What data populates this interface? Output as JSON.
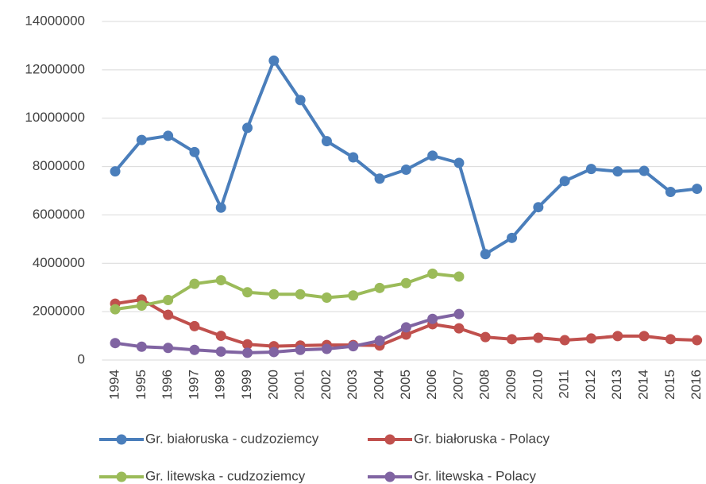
{
  "chart_data": {
    "type": "line",
    "categories": [
      "1994",
      "1995",
      "1996",
      "1997",
      "1998",
      "1999",
      "2000",
      "2001",
      "2002",
      "2003",
      "2004",
      "2005",
      "2006",
      "2007",
      "2008",
      "2009",
      "2010",
      "2011",
      "2012",
      "2013",
      "2014",
      "2015",
      "2016"
    ],
    "series": [
      {
        "name": "Gr. białoruska - cudzoziemcy",
        "color": "#4a7ebb",
        "values": [
          7800000,
          9100000,
          9270000,
          8600000,
          6300000,
          9600000,
          12380000,
          10750000,
          9050000,
          8380000,
          7500000,
          7870000,
          8450000,
          8150000,
          4380000,
          5050000,
          6320000,
          7400000,
          7900000,
          7800000,
          7820000,
          6950000,
          7080000
        ]
      },
      {
        "name": "Gr. białoruska - Polacy",
        "color": "#c0504d",
        "values": [
          2330000,
          2500000,
          1870000,
          1400000,
          1000000,
          650000,
          570000,
          600000,
          620000,
          620000,
          600000,
          1050000,
          1480000,
          1310000,
          950000,
          860000,
          920000,
          820000,
          890000,
          990000,
          990000,
          860000,
          820000
        ]
      },
      {
        "name": "Gr. litewska - cudzoziemcy",
        "color": "#9bbb59",
        "values": [
          2100000,
          2250000,
          2480000,
          3150000,
          3300000,
          2800000,
          2720000,
          2720000,
          2580000,
          2670000,
          2980000,
          3180000,
          3570000,
          3450000,
          null,
          null,
          null,
          null,
          null,
          null,
          null,
          null,
          null
        ]
      },
      {
        "name": "Gr. litewska - Polacy",
        "color": "#8064a2",
        "values": [
          700000,
          550000,
          500000,
          420000,
          350000,
          300000,
          330000,
          420000,
          460000,
          570000,
          800000,
          1350000,
          1700000,
          1900000,
          null,
          null,
          null,
          null,
          null,
          null,
          null,
          null,
          null
        ]
      }
    ],
    "ylim": [
      0,
      14000000
    ],
    "yticks": [
      0,
      2000000,
      4000000,
      6000000,
      8000000,
      10000000,
      12000000,
      14000000
    ],
    "grid": true
  }
}
